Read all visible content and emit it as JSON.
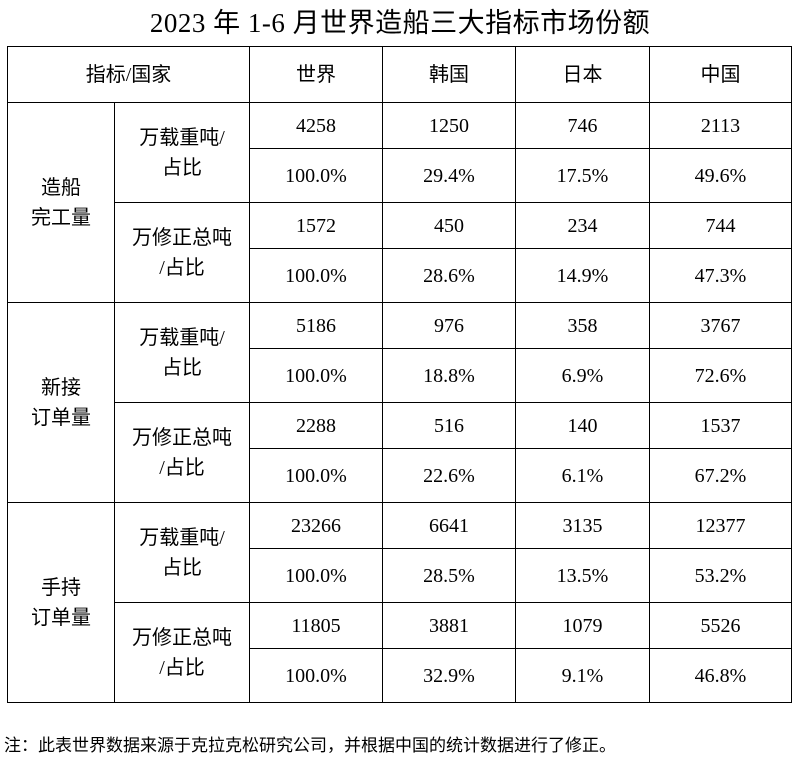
{
  "title": "2023 年 1-6 月世界造船三大指标市场份额",
  "header": {
    "indicator_country": "指标/国家",
    "columns": [
      "世界",
      "韩国",
      "日本",
      "中国"
    ]
  },
  "groups": [
    {
      "name_line1": "造船",
      "name_line2": "完工量",
      "metrics": [
        {
          "label_line1": "万载重吨/",
          "label_line2": "占比",
          "values": [
            "4258",
            "1250",
            "746",
            "2113"
          ],
          "shares": [
            "100.0%",
            "29.4%",
            "17.5%",
            "49.6%"
          ]
        },
        {
          "label_line1": "万修正总吨",
          "label_line2": "/占比",
          "values": [
            "1572",
            "450",
            "234",
            "744"
          ],
          "shares": [
            "100.0%",
            "28.6%",
            "14.9%",
            "47.3%"
          ]
        }
      ]
    },
    {
      "name_line1": "新接",
      "name_line2": "订单量",
      "metrics": [
        {
          "label_line1": "万载重吨/",
          "label_line2": "占比",
          "values": [
            "5186",
            "976",
            "358",
            "3767"
          ],
          "shares": [
            "100.0%",
            "18.8%",
            "6.9%",
            "72.6%"
          ]
        },
        {
          "label_line1": "万修正总吨",
          "label_line2": "/占比",
          "values": [
            "2288",
            "516",
            "140",
            "1537"
          ],
          "shares": [
            "100.0%",
            "22.6%",
            "6.1%",
            "67.2%"
          ]
        }
      ]
    },
    {
      "name_line1": "手持",
      "name_line2": "订单量",
      "metrics": [
        {
          "label_line1": "万载重吨/",
          "label_line2": "占比",
          "values": [
            "23266",
            "6641",
            "3135",
            "12377"
          ],
          "shares": [
            "100.0%",
            "28.5%",
            "13.5%",
            "53.2%"
          ]
        },
        {
          "label_line1": "万修正总吨",
          "label_line2": "/占比",
          "values": [
            "11805",
            "3881",
            "1079",
            "5526"
          ],
          "shares": [
            "100.0%",
            "32.9%",
            "9.1%",
            "46.8%"
          ]
        }
      ]
    }
  ],
  "note": "注：此表世界数据来源于克拉克松研究公司，并根据中国的统计数据进行了修正。"
}
